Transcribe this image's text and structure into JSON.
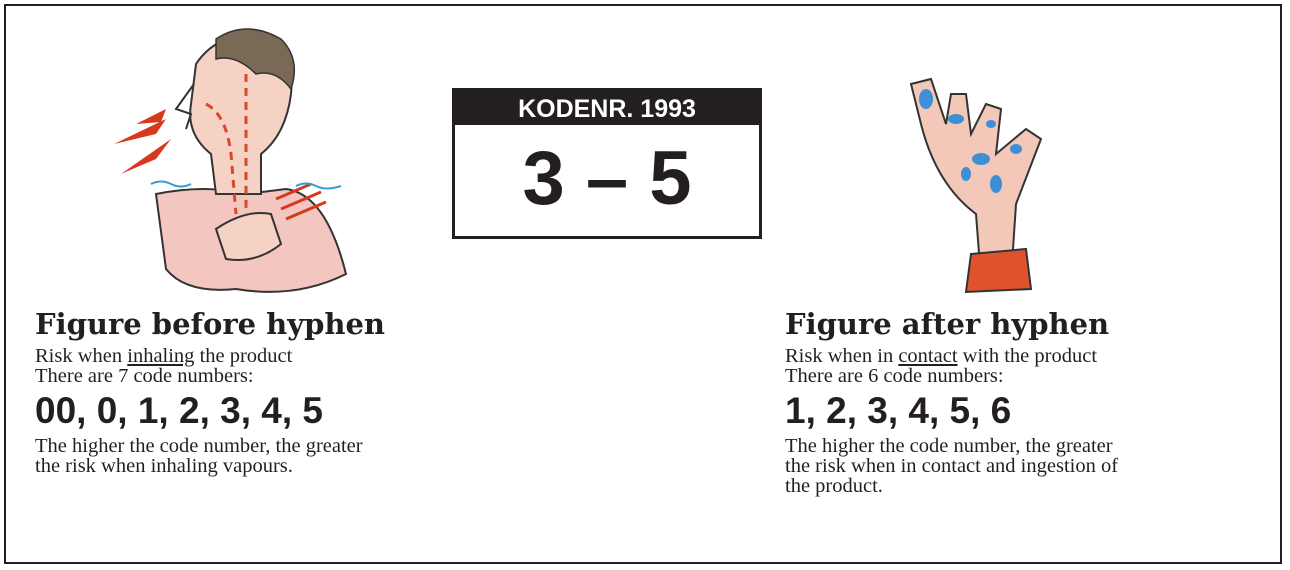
{
  "code_box": {
    "header": "KODENR. 1993",
    "code": "3 – 5"
  },
  "left": {
    "heading": "Figure before hyphen",
    "risk": [
      "Risk when ",
      "inhaling",
      " the product"
    ],
    "count": "There are 7 code numbers:",
    "codes": "00, 0, 1, 2, 3, 4, 5",
    "description": [
      "The higher the code number, the greater",
      "the risk when inhaling vapours."
    ]
  },
  "right": {
    "heading": "Figure after hyphen",
    "risk": [
      "Risk when in ",
      "contact",
      " with the product"
    ],
    "count": "There are 6 code numbers:",
    "codes": "1, 2, 3, 4, 5, 6",
    "description": [
      "The higher the code number, the greater",
      "the risk when in contact and ingestion of",
      "the product."
    ]
  }
}
